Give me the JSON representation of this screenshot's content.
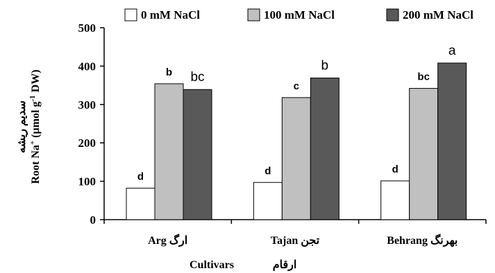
{
  "chart_data": {
    "type": "bar",
    "title": "",
    "xlabel": "Cultivars",
    "xlabel_fa": "ارقام",
    "ylabel_fa": "سدیم ریشه",
    "ylabel_pre": "Root Na",
    "ylabel_sup1": "+",
    "ylabel_mid": " (µmol g",
    "ylabel_sup2": "-1",
    "ylabel_post": " DW)",
    "ylim": [
      0,
      500
    ],
    "yticks": [
      0,
      100,
      200,
      300,
      400,
      500
    ],
    "ytick_labels": [
      "0",
      "100",
      "200",
      "300",
      "400",
      "500"
    ],
    "categories": [
      "Arg",
      "Tajan",
      "Behrang"
    ],
    "category_labels": [
      "Arg ارگ",
      "Tajan  تجن",
      "Behrang بهرنگ"
    ],
    "legend_position": "top",
    "series": [
      {
        "name": "0 mM NaCl",
        "color": "#ffffff",
        "values": [
          82,
          97,
          101
        ],
        "letters": [
          "d",
          "d",
          "d"
        ],
        "letter_style": [
          "bold",
          "bold",
          "bold"
        ]
      },
      {
        "name": "100 mM NaCl",
        "color": "#c0c0c0",
        "values": [
          354,
          318,
          342
        ],
        "letters": [
          "b",
          "c",
          "bc"
        ],
        "letter_style": [
          "bold",
          "bold",
          "bold"
        ]
      },
      {
        "name": "200 mM NaCl",
        "color": "#595959",
        "values": [
          339,
          369,
          408
        ],
        "letters": [
          "bc",
          "b",
          "a"
        ],
        "letter_style": [
          "plain",
          "plain",
          "plain"
        ]
      }
    ],
    "grid": false
  }
}
